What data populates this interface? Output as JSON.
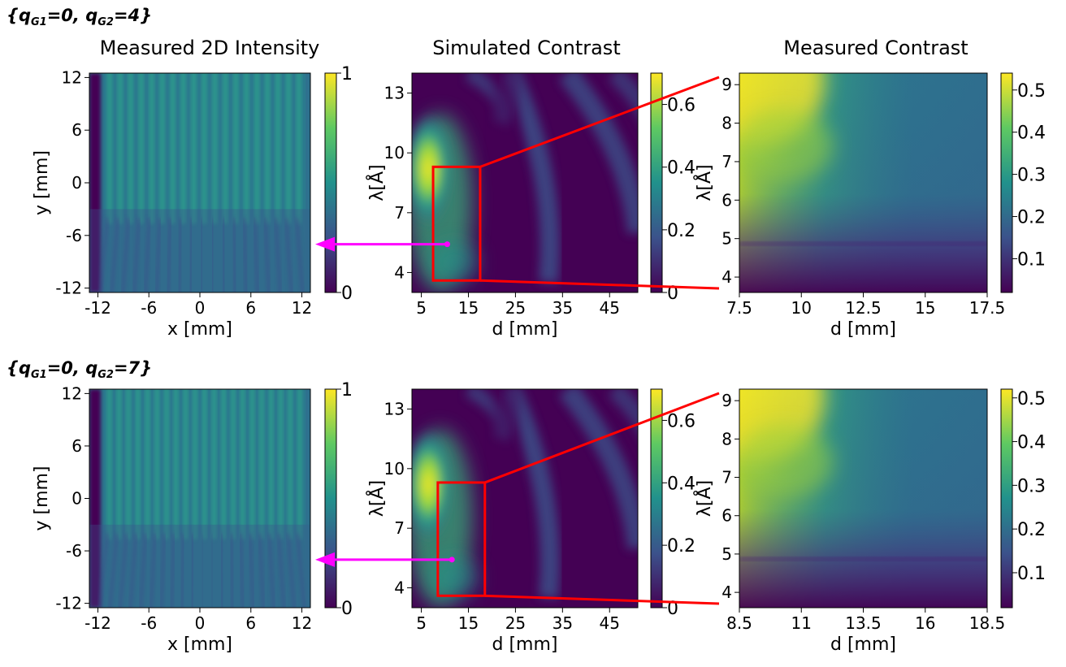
{
  "figure": {
    "row_labels": [
      {
        "prefix": "{q",
        "sub1": "G1",
        "mid": "=0, q",
        "sub2": "G2",
        "suffix": "=4}"
      },
      {
        "prefix": "{q",
        "sub1": "G1",
        "mid": "=0, q",
        "sub2": "G2",
        "suffix": "=7}"
      }
    ],
    "column_titles": [
      "Measured 2D Intensity",
      "Simulated Contrast",
      "Measured Contrast"
    ],
    "colors": {
      "marker_arrow": "#ff00ff",
      "zoom_box": "#ff0000",
      "colormap": "viridis"
    }
  },
  "chart_data": [
    {
      "type": "heatmap",
      "row": 0,
      "col": 0,
      "xlabel": "x [mm]",
      "ylabel": "y [mm]",
      "xlim": [
        -13,
        13
      ],
      "ylim": [
        -12.5,
        12.5
      ],
      "xticks": [
        -12,
        -6,
        0,
        6,
        12
      ],
      "xticklabels": [
        "-12",
        "-6",
        "0",
        "6",
        "12"
      ],
      "yticks": [
        -12,
        -6,
        0,
        6,
        12
      ],
      "yticklabels": [
        "-12",
        "-6",
        "0",
        "6",
        "12"
      ],
      "colorbar": {
        "range": [
          0,
          1
        ],
        "ticks": [
          0,
          1
        ],
        "ticklabels": [
          "0",
          "1"
        ]
      },
      "fringes": 19,
      "marker_y": -7
    },
    {
      "type": "heatmap",
      "row": 0,
      "col": 1,
      "xlabel": "d [mm]",
      "ylabel": "λ[Å]",
      "xlim": [
        3,
        51
      ],
      "ylim": [
        3,
        14
      ],
      "xticks": [
        5,
        15,
        25,
        35,
        45
      ],
      "xticklabels": [
        "5",
        "15",
        "25",
        "35",
        "45"
      ],
      "yticks": [
        4,
        7,
        10,
        13
      ],
      "yticklabels": [
        "4",
        "7",
        "10",
        "13"
      ],
      "colorbar": {
        "range": [
          0,
          0.7
        ],
        "ticks": [
          0,
          0.2,
          0.4,
          0.6
        ],
        "ticklabels": [
          "0",
          "0.2",
          "0.4",
          "0.6"
        ]
      },
      "zoom_box": {
        "d": [
          7.5,
          17.5
        ],
        "lambda": [
          3.6,
          9.3
        ]
      },
      "marker": {
        "d": 10.5,
        "lambda": 5.4
      }
    },
    {
      "type": "heatmap",
      "row": 0,
      "col": 2,
      "xlabel": "d [mm]",
      "ylabel": "λ[Å]",
      "xlim": [
        7.5,
        17.5
      ],
      "ylim": [
        3.6,
        9.3
      ],
      "xticks": [
        7.5,
        10,
        12.5,
        15,
        17.5
      ],
      "xticklabels": [
        "7.5",
        "10",
        "12.5",
        "15",
        "17.5"
      ],
      "yticks": [
        4,
        5,
        6,
        7,
        8,
        9
      ],
      "yticklabels": [
        "4",
        "5",
        "6",
        "7",
        "8",
        "9"
      ],
      "colorbar": {
        "range": [
          0.02,
          0.54
        ],
        "ticks": [
          0.1,
          0.2,
          0.3,
          0.4,
          0.5
        ],
        "ticklabels": [
          "0.1",
          "0.2",
          "0.3",
          "0.4",
          "0.5"
        ]
      }
    },
    {
      "type": "heatmap",
      "row": 1,
      "col": 0,
      "xlabel": "x [mm]",
      "ylabel": "y [mm]",
      "xlim": [
        -13,
        13
      ],
      "ylim": [
        -12.5,
        12.5
      ],
      "xticks": [
        -12,
        -6,
        0,
        6,
        12
      ],
      "xticklabels": [
        "-12",
        "-6",
        "0",
        "6",
        "12"
      ],
      "yticks": [
        -12,
        -6,
        0,
        6,
        12
      ],
      "yticklabels": [
        "-12",
        "-6",
        "0",
        "6",
        "12"
      ],
      "colorbar": {
        "range": [
          0,
          1
        ],
        "ticks": [
          0,
          1
        ],
        "ticklabels": [
          "0",
          "1"
        ]
      },
      "fringes": 21,
      "marker_y": -7
    },
    {
      "type": "heatmap",
      "row": 1,
      "col": 1,
      "xlabel": "d [mm]",
      "ylabel": "λ[Å]",
      "xlim": [
        3,
        51
      ],
      "ylim": [
        3,
        14
      ],
      "xticks": [
        5,
        15,
        25,
        35,
        45
      ],
      "xticklabels": [
        "5",
        "15",
        "25",
        "35",
        "45"
      ],
      "yticks": [
        4,
        7,
        10,
        13
      ],
      "yticklabels": [
        "4",
        "7",
        "10",
        "13"
      ],
      "colorbar": {
        "range": [
          0,
          0.7
        ],
        "ticks": [
          0,
          0.2,
          0.4,
          0.6
        ],
        "ticklabels": [
          "0",
          "0.2",
          "0.4",
          "0.6"
        ]
      },
      "zoom_box": {
        "d": [
          8.5,
          18.5
        ],
        "lambda": [
          3.6,
          9.3
        ]
      },
      "marker": {
        "d": 11.5,
        "lambda": 5.4
      }
    },
    {
      "type": "heatmap",
      "row": 1,
      "col": 2,
      "xlabel": "d [mm]",
      "ylabel": "λ[Å]",
      "xlim": [
        8.5,
        18.5
      ],
      "ylim": [
        3.6,
        9.3
      ],
      "xticks": [
        8.5,
        11,
        13.5,
        16,
        18.5
      ],
      "xticklabels": [
        "8.5",
        "11",
        "13.5",
        "16",
        "18.5"
      ],
      "yticks": [
        4,
        5,
        6,
        7,
        8,
        9
      ],
      "yticklabels": [
        "4",
        "5",
        "6",
        "7",
        "8",
        "9"
      ],
      "colorbar": {
        "range": [
          0.02,
          0.52
        ],
        "ticks": [
          0.1,
          0.2,
          0.3,
          0.4,
          0.5
        ],
        "ticklabels": [
          "0.1",
          "0.2",
          "0.3",
          "0.4",
          "0.5"
        ]
      }
    }
  ]
}
